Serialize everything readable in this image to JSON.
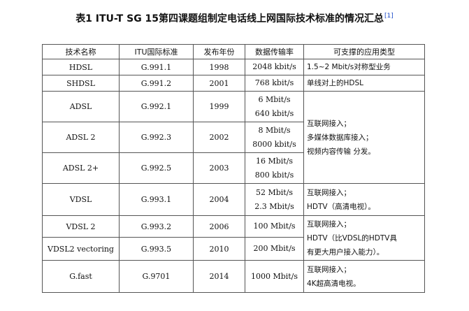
{
  "title": {
    "text": "表1  ITU-T SG 15第四课题组制定电话线上网国际技术标准的情况汇总",
    "ref": "[1]"
  },
  "table": {
    "headers": [
      "技术名称",
      "ITU国际标准",
      "发布年份",
      "数据传输率",
      "可支撑的应用类型"
    ],
    "rows": [
      {
        "name": "HDSL",
        "standard": "G.991.1",
        "year": "1998",
        "rate": [
          "2048 kbit/s"
        ]
      },
      {
        "name": "SHDSL",
        "standard": "G.991.2",
        "year": "2001",
        "rate": [
          "768 kbit/s"
        ]
      },
      {
        "name": "ADSL",
        "standard": "G.992.1",
        "year": "1999",
        "rate": [
          "6 Mbit/s",
          "640 kbit/s"
        ]
      },
      {
        "name": "ADSL 2",
        "standard": "G.992.3",
        "year": "2002",
        "rate": [
          "8 Mbit/s",
          "8000 kbit/s"
        ]
      },
      {
        "name": "ADSL 2+",
        "standard": "G.992.5",
        "year": "2003",
        "rate": [
          "16 Mbit/s",
          "800 kbit/s"
        ]
      },
      {
        "name": "VDSL",
        "standard": "G.993.1",
        "year": "2004",
        "rate": [
          "52 Mbit/s",
          "2.3 Mbit/s"
        ]
      },
      {
        "name": "VDSL 2",
        "standard": "G.993.2",
        "year": "2006",
        "rate": [
          "100 Mbit/s"
        ]
      },
      {
        "name": "VDSL2 vectoring",
        "standard": "G.993.5",
        "year": "2010",
        "rate": [
          "200 Mbit/s"
        ]
      },
      {
        "name": "G.fast",
        "standard": "G.9701",
        "year": "2014",
        "rate": [
          "1000 Mbit/s"
        ]
      }
    ],
    "applications": {
      "hdsl": [
        "1.5~2 Mbit/s对称型业务"
      ],
      "shdsl": [
        "单线对上的HDSL"
      ],
      "adsl_group": [
        "互联网接入；",
        "多媒体数据库接入；",
        "视频内容传输 分发。"
      ],
      "vdsl": [
        "互联网接入；",
        "HDTV（高清电视）。"
      ],
      "vdsl2_group": [
        "互联网接入；",
        "HDTV（比VDSL的HDTV具",
        "有更大用户接入能力）。"
      ],
      "gfast": [
        "互联网接入；",
        "4K超高清电视。"
      ]
    }
  }
}
